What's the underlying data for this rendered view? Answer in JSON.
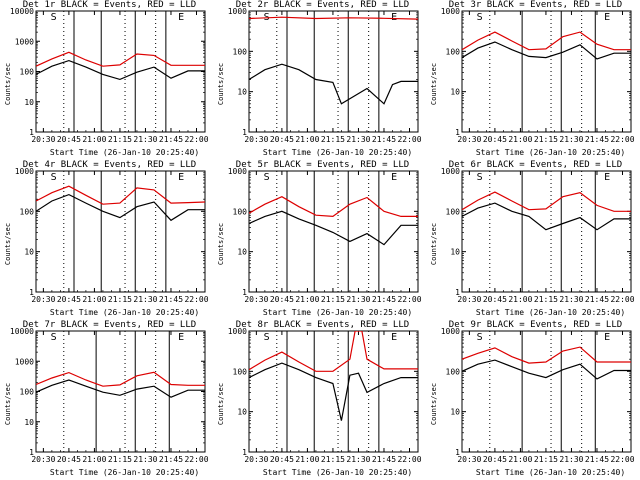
{
  "colors": {
    "events": "#000000",
    "lld": "#dd0000",
    "axis": "#000000",
    "background": "#ffffff"
  },
  "chart_data": [
    {
      "type": "line",
      "title": "Det 1r BLACK = Events, RED = LLD",
      "xlabel": "Start Time (26-Jan-10 20:25:40)",
      "ylabel": "Counts/sec",
      "yscale": "log",
      "xlim": [
        "20:25:40",
        "22:05"
      ],
      "ylim": [
        1,
        10000
      ],
      "xtick_labels": [
        "20:30",
        "20:45",
        "21:00",
        "21:15",
        "21:30",
        "21:45",
        "22:00"
      ],
      "ytick_labels": [
        "1",
        "10",
        "100",
        "1000",
        "10000"
      ],
      "vlines_solid": [
        "20:48",
        "21:04",
        "21:24",
        "21:42"
      ],
      "vlines_dotted": [
        "20:42",
        "21:18",
        "21:36"
      ],
      "markers": [
        {
          "text": "S",
          "x": "20:36"
        },
        {
          "text": "E",
          "x": "21:51"
        }
      ],
      "series": [
        {
          "color": "lld",
          "x": [
            "20:25:40",
            "20:35",
            "20:45",
            "20:55",
            "21:05",
            "21:15",
            "21:25",
            "21:35",
            "21:45",
            "21:55",
            "22:05"
          ],
          "y": [
            150,
            260,
            430,
            240,
            150,
            165,
            380,
            340,
            160,
            160,
            160
          ]
        },
        {
          "color": "events",
          "x": [
            "20:25:40",
            "20:35",
            "20:45",
            "20:55",
            "21:05",
            "21:15",
            "21:25",
            "21:35",
            "21:45",
            "21:55",
            "22:05"
          ],
          "y": [
            80,
            150,
            230,
            140,
            80,
            55,
            95,
            140,
            60,
            105,
            105
          ]
        }
      ]
    },
    {
      "type": "line",
      "title": "Det 2r BLACK = Events, RED = LLD",
      "xlabel": "Start Time (26-Jan-10 20:25:40)",
      "ylabel": "Counts/sec",
      "yscale": "log",
      "xlim": [
        "20:25:40",
        "22:05"
      ],
      "ylim": [
        1,
        1000
      ],
      "xtick_labels": [
        "20:30",
        "20:45",
        "21:00",
        "21:15",
        "21:30",
        "21:45",
        "22:00"
      ],
      "ytick_labels": [
        "1",
        "10",
        "100",
        "1000"
      ],
      "vlines_solid": [
        "20:48",
        "21:04",
        "21:24",
        "21:42"
      ],
      "vlines_dotted": [
        "20:42",
        "21:18",
        "21:36"
      ],
      "markers": [
        {
          "text": "S",
          "x": "20:36"
        },
        {
          "text": "E",
          "x": "21:51"
        }
      ],
      "series": [
        {
          "color": "lld",
          "x": [
            "20:25:40",
            "20:45",
            "21:05",
            "21:25",
            "21:45",
            "22:05"
          ],
          "y": [
            650,
            700,
            650,
            680,
            660,
            630
          ]
        },
        {
          "color": "events",
          "x": [
            "20:25:40",
            "20:35",
            "20:45",
            "20:55",
            "21:05",
            "21:15",
            "21:20",
            "21:35",
            "21:45",
            "21:50",
            "21:55",
            "22:05"
          ],
          "y": [
            20,
            35,
            48,
            35,
            20,
            17,
            5,
            12,
            5,
            15,
            18,
            18
          ]
        }
      ]
    },
    {
      "type": "line",
      "title": "Det 3r BLACK = Events, RED = LLD",
      "xlabel": "Start Time (26-Jan-10 20:25:40)",
      "ylabel": "Counts/sec",
      "yscale": "log",
      "xlim": [
        "20:25:40",
        "22:05"
      ],
      "ylim": [
        1,
        1000
      ],
      "xtick_labels": [
        "20:30",
        "20:45",
        "21:00",
        "21:15",
        "21:30",
        "21:45",
        "22:00"
      ],
      "ytick_labels": [
        "1",
        "10",
        "100",
        "1000"
      ],
      "vlines_solid": [
        "21:01",
        "21:24",
        "21:44"
      ],
      "vlines_dotted": [
        "20:42",
        "21:18",
        "21:36"
      ],
      "markers": [
        {
          "text": "S",
          "x": "20:36"
        },
        {
          "text": "E",
          "x": "21:51"
        }
      ],
      "series": [
        {
          "color": "lld",
          "x": [
            "20:25:40",
            "20:35",
            "20:45",
            "20:55",
            "21:05",
            "21:15",
            "21:25",
            "21:35",
            "21:45",
            "21:55",
            "22:05"
          ],
          "y": [
            110,
            190,
            300,
            180,
            110,
            115,
            230,
            300,
            150,
            110,
            110
          ]
        },
        {
          "color": "events",
          "x": [
            "20:25:40",
            "20:35",
            "20:45",
            "20:55",
            "21:05",
            "21:15",
            "21:25",
            "21:35",
            "21:45",
            "21:55",
            "22:05"
          ],
          "y": [
            70,
            120,
            170,
            110,
            75,
            70,
            95,
            145,
            65,
            90,
            90
          ]
        }
      ]
    },
    {
      "type": "line",
      "title": "Det 4r BLACK = Events, RED = LLD",
      "xlabel": "Start Time (26-Jan-10 20:25:40)",
      "ylabel": "Counts/sec",
      "yscale": "log",
      "xlim": [
        "20:25:40",
        "22:05"
      ],
      "ylim": [
        1,
        1000
      ],
      "xtick_labels": [
        "20:30",
        "20:45",
        "21:00",
        "21:15",
        "21:30",
        "21:45",
        "22:00"
      ],
      "ytick_labels": [
        "1",
        "10",
        "100",
        "1000"
      ],
      "vlines_solid": [
        "20:48",
        "21:04",
        "21:24",
        "21:42"
      ],
      "vlines_dotted": [
        "20:42",
        "21:18",
        "21:36"
      ],
      "markers": [
        {
          "text": "S",
          "x": "20:36"
        },
        {
          "text": "E",
          "x": "21:51"
        }
      ],
      "series": [
        {
          "color": "lld",
          "x": [
            "20:25:40",
            "20:35",
            "20:45",
            "20:55",
            "21:05",
            "21:15",
            "21:25",
            "21:35",
            "21:45",
            "21:55",
            "22:05"
          ],
          "y": [
            180,
            290,
            420,
            250,
            150,
            160,
            380,
            340,
            160,
            165,
            170
          ]
        },
        {
          "color": "events",
          "x": [
            "20:25:40",
            "20:35",
            "20:45",
            "20:55",
            "21:05",
            "21:15",
            "21:25",
            "21:35",
            "21:45",
            "21:55",
            "22:05"
          ],
          "y": [
            100,
            180,
            260,
            160,
            100,
            70,
            130,
            170,
            60,
            110,
            110
          ]
        }
      ]
    },
    {
      "type": "line",
      "title": "Det 5r BLACK = Events, RED = LLD",
      "xlabel": "Start Time (26-Jan-10 20:25:40)",
      "ylabel": "Counts/sec",
      "yscale": "log",
      "xlim": [
        "20:25:40",
        "22:05"
      ],
      "ylim": [
        1,
        1000
      ],
      "xtick_labels": [
        "20:30",
        "20:45",
        "21:00",
        "21:15",
        "21:30",
        "21:45",
        "22:00"
      ],
      "ytick_labels": [
        "1",
        "10",
        "100",
        "1000"
      ],
      "vlines_solid": [
        "20:48",
        "21:04",
        "21:24",
        "21:42"
      ],
      "vlines_dotted": [
        "20:42",
        "21:18",
        "21:36"
      ],
      "markers": [
        {
          "text": "S",
          "x": "20:36"
        },
        {
          "text": "E",
          "x": "21:51"
        }
      ],
      "series": [
        {
          "color": "lld",
          "x": [
            "20:25:40",
            "20:35",
            "20:45",
            "20:55",
            "21:05",
            "21:15",
            "21:25",
            "21:35",
            "21:45",
            "21:55",
            "22:05"
          ],
          "y": [
            90,
            150,
            230,
            130,
            80,
            75,
            150,
            220,
            100,
            75,
            75
          ]
        },
        {
          "color": "events",
          "x": [
            "20:25:40",
            "20:35",
            "20:45",
            "20:55",
            "21:05",
            "21:15",
            "21:25",
            "21:35",
            "21:45",
            "21:55",
            "22:05"
          ],
          "y": [
            50,
            75,
            100,
            65,
            45,
            30,
            18,
            28,
            15,
            45,
            45
          ]
        }
      ]
    },
    {
      "type": "line",
      "title": "Det 6r BLACK = Events, RED = LLD",
      "xlabel": "Start Time (26-Jan-10 20:25:40)",
      "ylabel": "Counts/sec",
      "yscale": "log",
      "xlim": [
        "20:25:40",
        "22:05"
      ],
      "ylim": [
        1,
        1000
      ],
      "xtick_labels": [
        "20:30",
        "20:45",
        "21:00",
        "21:15",
        "21:30",
        "21:45",
        "22:00"
      ],
      "ytick_labels": [
        "1",
        "10",
        "100",
        "1000"
      ],
      "vlines_solid": [
        "21:01",
        "21:24",
        "21:44"
      ],
      "vlines_dotted": [
        "20:42",
        "21:18",
        "21:36"
      ],
      "markers": [
        {
          "text": "S",
          "x": "20:36"
        },
        {
          "text": "E",
          "x": "21:51"
        }
      ],
      "series": [
        {
          "color": "lld",
          "x": [
            "20:25:40",
            "20:35",
            "20:45",
            "20:55",
            "21:05",
            "21:15",
            "21:25",
            "21:35",
            "21:45",
            "21:55",
            "22:05"
          ],
          "y": [
            110,
            190,
            300,
            180,
            110,
            115,
            230,
            290,
            140,
            100,
            100
          ]
        },
        {
          "color": "events",
          "x": [
            "20:25:40",
            "20:35",
            "20:45",
            "20:55",
            "21:05",
            "21:15",
            "21:25",
            "21:35",
            "21:45",
            "21:55",
            "22:05"
          ],
          "y": [
            75,
            120,
            160,
            100,
            75,
            35,
            50,
            70,
            35,
            65,
            65
          ]
        }
      ]
    },
    {
      "type": "line",
      "title": "Det 7r BLACK = Events, RED = LLD",
      "xlabel": "Start Time (26-Jan-10 20:25:40)",
      "ylabel": "Counts/sec",
      "yscale": "log",
      "xlim": [
        "20:25:40",
        "22:05"
      ],
      "ylim": [
        1,
        10000
      ],
      "xtick_labels": [
        "20:30",
        "20:45",
        "21:00",
        "21:15",
        "21:30",
        "21:45",
        "22:00"
      ],
      "ytick_labels": [
        "1",
        "10",
        "100",
        "1000",
        "10000"
      ],
      "vlines_solid": [
        "21:01",
        "21:24",
        "21:44"
      ],
      "vlines_dotted": [
        "20:42",
        "21:18",
        "21:36"
      ],
      "markers": [
        {
          "text": "S",
          "x": "20:36"
        },
        {
          "text": "E",
          "x": "21:51"
        }
      ],
      "series": [
        {
          "color": "lld",
          "x": [
            "20:25:40",
            "20:35",
            "20:45",
            "20:55",
            "21:05",
            "21:15",
            "21:25",
            "21:35",
            "21:45",
            "21:55",
            "22:05"
          ],
          "y": [
            170,
            280,
            420,
            240,
            150,
            165,
            330,
            430,
            170,
            160,
            160
          ]
        },
        {
          "color": "events",
          "x": [
            "20:25:40",
            "20:35",
            "20:45",
            "20:55",
            "21:05",
            "21:15",
            "21:25",
            "21:35",
            "21:45",
            "21:55",
            "22:05"
          ],
          "y": [
            95,
            160,
            240,
            150,
            95,
            75,
            120,
            150,
            65,
            110,
            110
          ]
        }
      ]
    },
    {
      "type": "line",
      "title": "Det 8r BLACK = Events, RED = LLD",
      "xlabel": "Start Time (26-Jan-10 20:25:40)",
      "ylabel": "Counts/sec",
      "yscale": "log",
      "xlim": [
        "20:25:40",
        "22:05"
      ],
      "ylim": [
        1,
        1000
      ],
      "xtick_labels": [
        "20:30",
        "20:45",
        "21:00",
        "21:15",
        "21:30",
        "21:45",
        "22:00"
      ],
      "ytick_labels": [
        "1",
        "10",
        "100",
        "1000"
      ],
      "vlines_solid": [
        "20:48",
        "21:04",
        "21:24",
        "21:42"
      ],
      "vlines_dotted": [
        "20:42",
        "21:18",
        "21:36"
      ],
      "markers": [
        {
          "text": "S",
          "x": "20:36"
        },
        {
          "text": "E",
          "x": "21:51"
        }
      ],
      "series": [
        {
          "color": "lld",
          "x": [
            "20:25:40",
            "20:35",
            "20:45",
            "20:55",
            "21:05",
            "21:15",
            "21:25",
            "21:28",
            "21:30",
            "21:32",
            "21:35",
            "21:45",
            "21:55",
            "22:05"
          ],
          "y": [
            110,
            190,
            300,
            170,
            100,
            100,
            200,
            1000,
            1000,
            1000,
            200,
            115,
            115,
            115
          ]
        },
        {
          "color": "events",
          "x": [
            "20:25:40",
            "20:35",
            "20:45",
            "20:55",
            "21:05",
            "21:15",
            "21:20",
            "21:25",
            "21:30",
            "21:35",
            "21:45",
            "21:55",
            "22:05"
          ],
          "y": [
            70,
            110,
            160,
            110,
            70,
            50,
            6,
            80,
            90,
            30,
            50,
            70,
            70
          ]
        }
      ]
    },
    {
      "type": "line",
      "title": "Det 9r BLACK = Events, RED = LLD",
      "xlabel": "Start Time (26-Jan-10 20:25:40)",
      "ylabel": "Counts/sec",
      "yscale": "log",
      "xlim": [
        "20:25:40",
        "22:05"
      ],
      "ylim": [
        1,
        1000
      ],
      "xtick_labels": [
        "20:30",
        "20:45",
        "21:00",
        "21:15",
        "21:30",
        "21:45",
        "22:00"
      ],
      "ytick_labels": [
        "1",
        "10",
        "100",
        "1000"
      ],
      "vlines_solid": [
        "21:01",
        "21:24",
        "21:44"
      ],
      "vlines_dotted": [
        "20:42",
        "21:18",
        "21:36"
      ],
      "markers": [
        {
          "text": "S",
          "x": "20:36"
        },
        {
          "text": "E",
          "x": "21:51"
        }
      ],
      "series": [
        {
          "color": "lld",
          "x": [
            "20:25:40",
            "20:35",
            "20:45",
            "20:55",
            "21:05",
            "21:15",
            "21:25",
            "21:35",
            "21:45",
            "21:55",
            "22:05"
          ],
          "y": [
            200,
            280,
            380,
            230,
            160,
            170,
            320,
            400,
            170,
            170,
            170
          ]
        },
        {
          "color": "events",
          "x": [
            "20:25:40",
            "20:35",
            "20:45",
            "20:55",
            "21:05",
            "21:15",
            "21:25",
            "21:35",
            "21:45",
            "21:55",
            "22:05"
          ],
          "y": [
            100,
            150,
            190,
            130,
            90,
            70,
            110,
            150,
            65,
            105,
            105
          ]
        }
      ]
    }
  ]
}
